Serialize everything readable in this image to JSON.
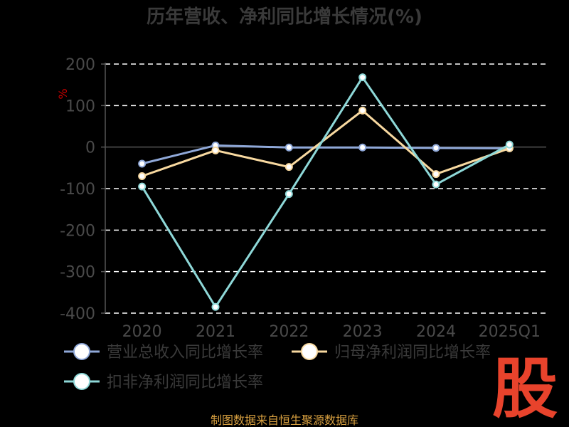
{
  "chart_data": {
    "type": "line",
    "title": "历年营收、净利同比增长情况(%)",
    "ylabel": "%",
    "xlabel": "",
    "categories": [
      "2020",
      "2021",
      "2022",
      "2023",
      "2024",
      "2025Q1"
    ],
    "ylim": [
      -400,
      200
    ],
    "yticks": [
      200,
      100,
      0,
      -100,
      -200,
      -300,
      -400
    ],
    "grid": true,
    "legend_position": "bottom-left",
    "series": [
      {
        "name": "营业总收入同比增长率",
        "color": "#8fa8d8",
        "values": [
          -40,
          4,
          -1,
          -1,
          -2,
          -3
        ]
      },
      {
        "name": "归母净利润同比增长率",
        "color": "#f8d9a0",
        "values": [
          -70,
          -8,
          -48,
          88,
          -65,
          -3
        ]
      },
      {
        "name": "扣非净利润同比增长率",
        "color": "#8ed8d8",
        "values": [
          -95,
          -385,
          -113,
          168,
          -90,
          6
        ]
      }
    ]
  },
  "source_text": "制图数据来自恒生聚源数据库",
  "logo_text": "股"
}
